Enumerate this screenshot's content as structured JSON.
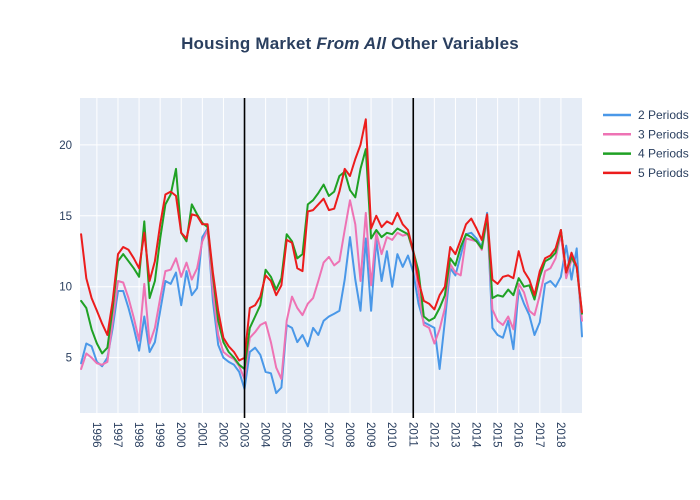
{
  "title": {
    "prefix": "Housing Market ",
    "emphasis": "From All",
    "suffix": " Other Variables"
  },
  "colors": {
    "paper_bg": "#ffffff",
    "plot_bg": "#e5ecf6",
    "grid": "#ffffff",
    "text": "#2a3f5f",
    "event_line": "#000000"
  },
  "chart_data": {
    "type": "line",
    "title": "Housing Market From All Other Variables",
    "xlabel": "",
    "ylabel": "",
    "grid": true,
    "legend_position": "right",
    "x_start": 1995.25,
    "x_step": 0.25,
    "x_axis": {
      "min": 1995.2,
      "max": 2019.0,
      "tick_labels": [
        "1996",
        "1997",
        "1998",
        "1999",
        "2000",
        "2001",
        "2002",
        "2003",
        "2004",
        "2005",
        "2006",
        "2007",
        "2008",
        "2009",
        "2010",
        "2011",
        "2012",
        "2013",
        "2014",
        "2015",
        "2016",
        "2017",
        "2018"
      ]
    },
    "y_axis": {
      "min": 1.1,
      "max": 23.3,
      "ticks": [
        5,
        10,
        15,
        20
      ]
    },
    "vlines": [
      2003,
      2011
    ],
    "series": [
      {
        "name": "2 Periods",
        "color": "#4a98e8",
        "values": [
          4.6,
          6.0,
          5.8,
          4.7,
          4.4,
          5.0,
          7.1,
          9.7,
          9.7,
          8.5,
          7.1,
          5.5,
          7.9,
          5.4,
          6.1,
          8.3,
          10.4,
          10.2,
          11.0,
          8.7,
          11.1,
          9.4,
          9.9,
          13.5,
          14.1,
          9.0,
          5.9,
          5.0,
          4.7,
          4.5,
          4.0,
          2.8,
          5.4,
          5.7,
          5.2,
          4.0,
          3.9,
          2.5,
          2.9,
          7.3,
          7.1,
          6.1,
          6.6,
          5.8,
          7.1,
          6.6,
          7.6,
          7.9,
          8.1,
          8.3,
          10.5,
          13.5,
          10.5,
          8.3,
          13.4,
          8.3,
          13.3,
          10.4,
          12.5,
          10.0,
          12.3,
          11.4,
          12.2,
          11.0,
          8.8,
          7.5,
          7.3,
          7.1,
          4.2,
          7.6,
          11.3,
          10.8,
          12.2,
          13.7,
          13.8,
          13.4,
          12.8,
          15.2,
          7.1,
          6.6,
          6.4,
          7.6,
          5.6,
          9.8,
          8.8,
          8.0,
          6.6,
          7.5,
          10.2,
          10.4,
          10.0,
          10.7,
          12.9,
          10.5,
          12.7,
          6.5
        ]
      },
      {
        "name": "3 Periods",
        "color": "#ee73b4",
        "values": [
          4.2,
          5.3,
          5.0,
          4.6,
          4.5,
          4.7,
          7.6,
          10.4,
          10.3,
          9.2,
          7.8,
          6.2,
          10.2,
          6.0,
          7.1,
          9.2,
          11.1,
          11.2,
          12.0,
          10.7,
          11.7,
          10.5,
          11.3,
          13.2,
          14.0,
          9.7,
          6.6,
          5.4,
          5.1,
          4.9,
          4.4,
          3.5,
          6.4,
          6.8,
          7.3,
          7.5,
          6.1,
          4.3,
          3.5,
          7.6,
          9.3,
          8.5,
          8.0,
          8.8,
          9.2,
          10.4,
          11.7,
          12.1,
          11.5,
          11.8,
          14.0,
          16.1,
          14.4,
          10.4,
          15.2,
          10.1,
          13.8,
          12.3,
          13.5,
          13.3,
          13.8,
          13.6,
          13.7,
          12.4,
          9.7,
          7.3,
          7.1,
          6.0,
          7.0,
          8.5,
          11.6,
          11.0,
          10.8,
          13.4,
          13.3,
          13.2,
          12.6,
          14.7,
          8.4,
          7.6,
          7.3,
          7.9,
          7.0,
          10.2,
          9.6,
          8.3,
          8.0,
          9.4,
          11.1,
          11.3,
          12.0,
          13.7,
          10.6,
          11.9,
          11.5,
          7.6
        ]
      },
      {
        "name": "4 Periods",
        "color": "#1fa124",
        "values": [
          9.0,
          8.5,
          7.0,
          6.0,
          5.3,
          5.7,
          8.5,
          11.8,
          12.3,
          11.8,
          11.3,
          10.7,
          14.6,
          9.2,
          10.4,
          13.4,
          15.8,
          16.5,
          18.3,
          13.8,
          13.2,
          15.8,
          15.1,
          14.5,
          14.2,
          10.8,
          7.6,
          6.1,
          5.4,
          5.0,
          4.5,
          4.2,
          7.1,
          7.9,
          8.7,
          11.2,
          10.7,
          9.8,
          10.6,
          13.7,
          13.2,
          12.0,
          12.3,
          15.8,
          16.1,
          16.6,
          17.2,
          16.4,
          16.7,
          17.8,
          18.1,
          16.8,
          16.3,
          18.3,
          19.7,
          13.4,
          14.0,
          13.5,
          13.8,
          13.7,
          14.1,
          13.9,
          13.7,
          12.5,
          11.1,
          7.9,
          7.6,
          7.8,
          8.5,
          9.4,
          12.0,
          11.5,
          12.8,
          13.7,
          13.5,
          13.2,
          12.7,
          15.0,
          9.2,
          9.4,
          9.3,
          9.8,
          9.4,
          10.6,
          10.0,
          10.1,
          9.1,
          10.7,
          11.8,
          12.0,
          12.4,
          14.0,
          11.0,
          12.1,
          11.4,
          8.1
        ]
      },
      {
        "name": "5 Periods",
        "color": "#ec1c1c",
        "values": [
          13.7,
          10.6,
          9.2,
          8.3,
          7.4,
          6.6,
          9.0,
          12.3,
          12.8,
          12.6,
          12.0,
          11.3,
          13.8,
          10.4,
          11.8,
          14.4,
          16.5,
          16.7,
          16.4,
          13.8,
          13.4,
          15.1,
          15.0,
          14.4,
          14.4,
          11.0,
          8.3,
          6.4,
          5.8,
          5.4,
          4.8,
          5.0,
          8.5,
          8.7,
          9.3,
          10.8,
          10.4,
          9.4,
          10.1,
          13.3,
          13.1,
          11.3,
          11.1,
          15.3,
          15.4,
          15.8,
          16.2,
          15.4,
          15.5,
          16.7,
          18.3,
          17.8,
          19.0,
          20.0,
          21.8,
          14.1,
          15.0,
          14.2,
          14.6,
          14.4,
          15.2,
          14.4,
          14.0,
          12.5,
          10.4,
          9.0,
          8.8,
          8.4,
          9.4,
          10.0,
          12.8,
          12.3,
          13.3,
          14.4,
          14.8,
          14.1,
          13.3,
          15.1,
          10.5,
          10.2,
          10.7,
          10.8,
          10.6,
          12.5,
          11.1,
          10.5,
          9.4,
          11.1,
          12.0,
          12.2,
          12.7,
          14.0,
          11.0,
          12.4,
          11.4,
          8.2
        ]
      }
    ]
  }
}
